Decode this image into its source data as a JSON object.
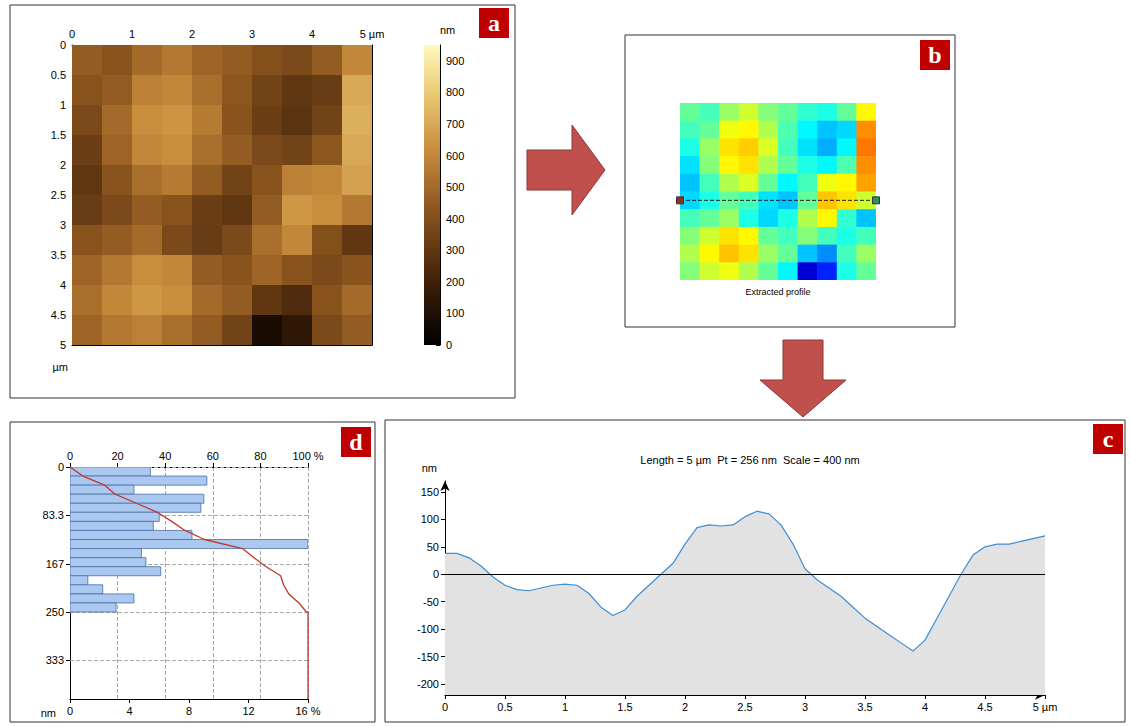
{
  "chart_data": [
    {
      "panel": "a",
      "type": "heatmap",
      "xlim": [
        0,
        5
      ],
      "ylim": [
        0,
        5
      ],
      "xticks": [
        0,
        1,
        2,
        3,
        4,
        {
          "value": 5,
          "label": "5 µm"
        }
      ],
      "yticks": [
        0,
        0.5,
        1,
        1.5,
        2,
        2.5,
        3,
        3.5,
        4,
        4.5,
        5
      ],
      "y_label": "µm",
      "heights": [
        [
          450,
          420,
          500,
          550,
          480,
          450,
          400,
          380,
          450,
          600
        ],
        [
          420,
          450,
          580,
          600,
          520,
          430,
          350,
          300,
          320,
          700
        ],
        [
          380,
          500,
          620,
          640,
          560,
          420,
          330,
          280,
          350,
          720
        ],
        [
          330,
          480,
          600,
          620,
          520,
          450,
          380,
          350,
          430,
          700
        ],
        [
          300,
          420,
          520,
          560,
          450,
          350,
          420,
          580,
          600,
          680
        ],
        [
          320,
          380,
          450,
          420,
          330,
          300,
          450,
          650,
          620,
          550
        ],
        [
          420,
          450,
          500,
          380,
          320,
          380,
          520,
          600,
          400,
          300
        ],
        [
          480,
          550,
          620,
          600,
          450,
          420,
          480,
          420,
          380,
          420
        ],
        [
          520,
          600,
          650,
          620,
          500,
          450,
          300,
          250,
          420,
          500
        ],
        [
          480,
          550,
          580,
          520,
          450,
          350,
          80,
          150,
          380,
          450
        ]
      ],
      "colorbar": {
        "label": "nm",
        "range": [
          0,
          950
        ],
        "ticks": [
          0,
          100,
          200,
          300,
          400,
          500,
          600,
          700,
          800,
          900
        ]
      }
    },
    {
      "panel": "b",
      "type": "heatmap",
      "caption": "Extracted profile",
      "profile_y": 2.75,
      "tick_labels": false
    },
    {
      "panel": "c",
      "type": "line",
      "title": "Length = 5 µm  Pt = 256 nm  Scale = 400 nm",
      "x": [
        0,
        0.1,
        0.2,
        0.3,
        0.4,
        0.5,
        0.6,
        0.7,
        0.8,
        0.9,
        1,
        1.1,
        1.2,
        1.3,
        1.4,
        1.5,
        1.6,
        1.7,
        1.8,
        1.9,
        2,
        2.1,
        2.2,
        2.3,
        2.4,
        2.5,
        2.6,
        2.7,
        2.8,
        2.9,
        3,
        3.1,
        3.2,
        3.3,
        3.4,
        3.5,
        3.6,
        3.7,
        3.8,
        3.9,
        4,
        4.1,
        4.2,
        4.3,
        4.4,
        4.5,
        4.6,
        4.7,
        4.8,
        4.9,
        5
      ],
      "values": [
        38,
        38,
        30,
        15,
        -5,
        -20,
        -28,
        -30,
        -25,
        -20,
        -18,
        -20,
        -35,
        -60,
        -75,
        -65,
        -40,
        -20,
        0,
        20,
        55,
        85,
        90,
        88,
        90,
        105,
        115,
        110,
        90,
        55,
        10,
        -10,
        -25,
        -40,
        -60,
        -80,
        -95,
        -110,
        -125,
        -140,
        -120,
        -80,
        -40,
        0,
        35,
        50,
        55,
        55,
        60,
        65,
        70
      ],
      "xlim": [
        0,
        5
      ],
      "xticks": [
        0,
        0.5,
        1,
        1.5,
        2,
        2.5,
        3,
        3.5,
        4,
        4.5,
        {
          "value": 5,
          "label": "5 µm"
        }
      ],
      "ylim": [
        -220,
        170
      ],
      "yticks": [
        -200,
        -150,
        -100,
        -50,
        0,
        50,
        100,
        150
      ],
      "y_label": "nm",
      "color": "#3a8fd8",
      "reference_line": 0,
      "grid": false
    },
    {
      "panel": "d",
      "type": "histogram",
      "orientation": "horizontal",
      "bins": [
        0,
        15.6,
        31.3,
        46.9,
        62.5,
        78.1,
        93.8,
        109.4,
        125,
        140.6,
        156.3,
        171.9,
        187.5,
        203.1,
        218.8,
        234.4,
        250
      ],
      "values": [
        5.4,
        9.2,
        4.3,
        9.0,
        8.8,
        6.0,
        5.6,
        8.2,
        16.0,
        4.8,
        5.1,
        6.1,
        1.2,
        2.2,
        4.3,
        3.1
      ],
      "color": "#abc8f0",
      "xlim": [
        0,
        16
      ],
      "xticks": [
        0,
        4,
        8,
        12,
        {
          "value": 16,
          "label": "16 %"
        }
      ],
      "x2lim": [
        0,
        100
      ],
      "x2ticks": [
        0,
        20,
        40,
        60,
        80,
        {
          "value": 100,
          "label": "100 %"
        }
      ],
      "ylim": [
        0,
        400
      ],
      "yticks": [
        0,
        83.3,
        167,
        250,
        333
      ],
      "y_label": "nm",
      "cumulative": {
        "color": "#c0392b",
        "points": [
          [
            0,
            0
          ],
          [
            5.4,
            15.6
          ],
          [
            14.6,
            31.3
          ],
          [
            18.9,
            46.9
          ],
          [
            27.9,
            62.5
          ],
          [
            36.7,
            78.1
          ],
          [
            42.7,
            93.8
          ],
          [
            48.3,
            109.4
          ],
          [
            56.5,
            125
          ],
          [
            72.5,
            140.6
          ],
          [
            77.3,
            156.3
          ],
          [
            82.4,
            171.9
          ],
          [
            88.5,
            187.5
          ],
          [
            89.7,
            203.1
          ],
          [
            91.9,
            218.8
          ],
          [
            96.2,
            234.4
          ],
          [
            99.3,
            250
          ],
          [
            100,
            250
          ],
          [
            100,
            400
          ]
        ]
      },
      "grid": true
    }
  ]
}
